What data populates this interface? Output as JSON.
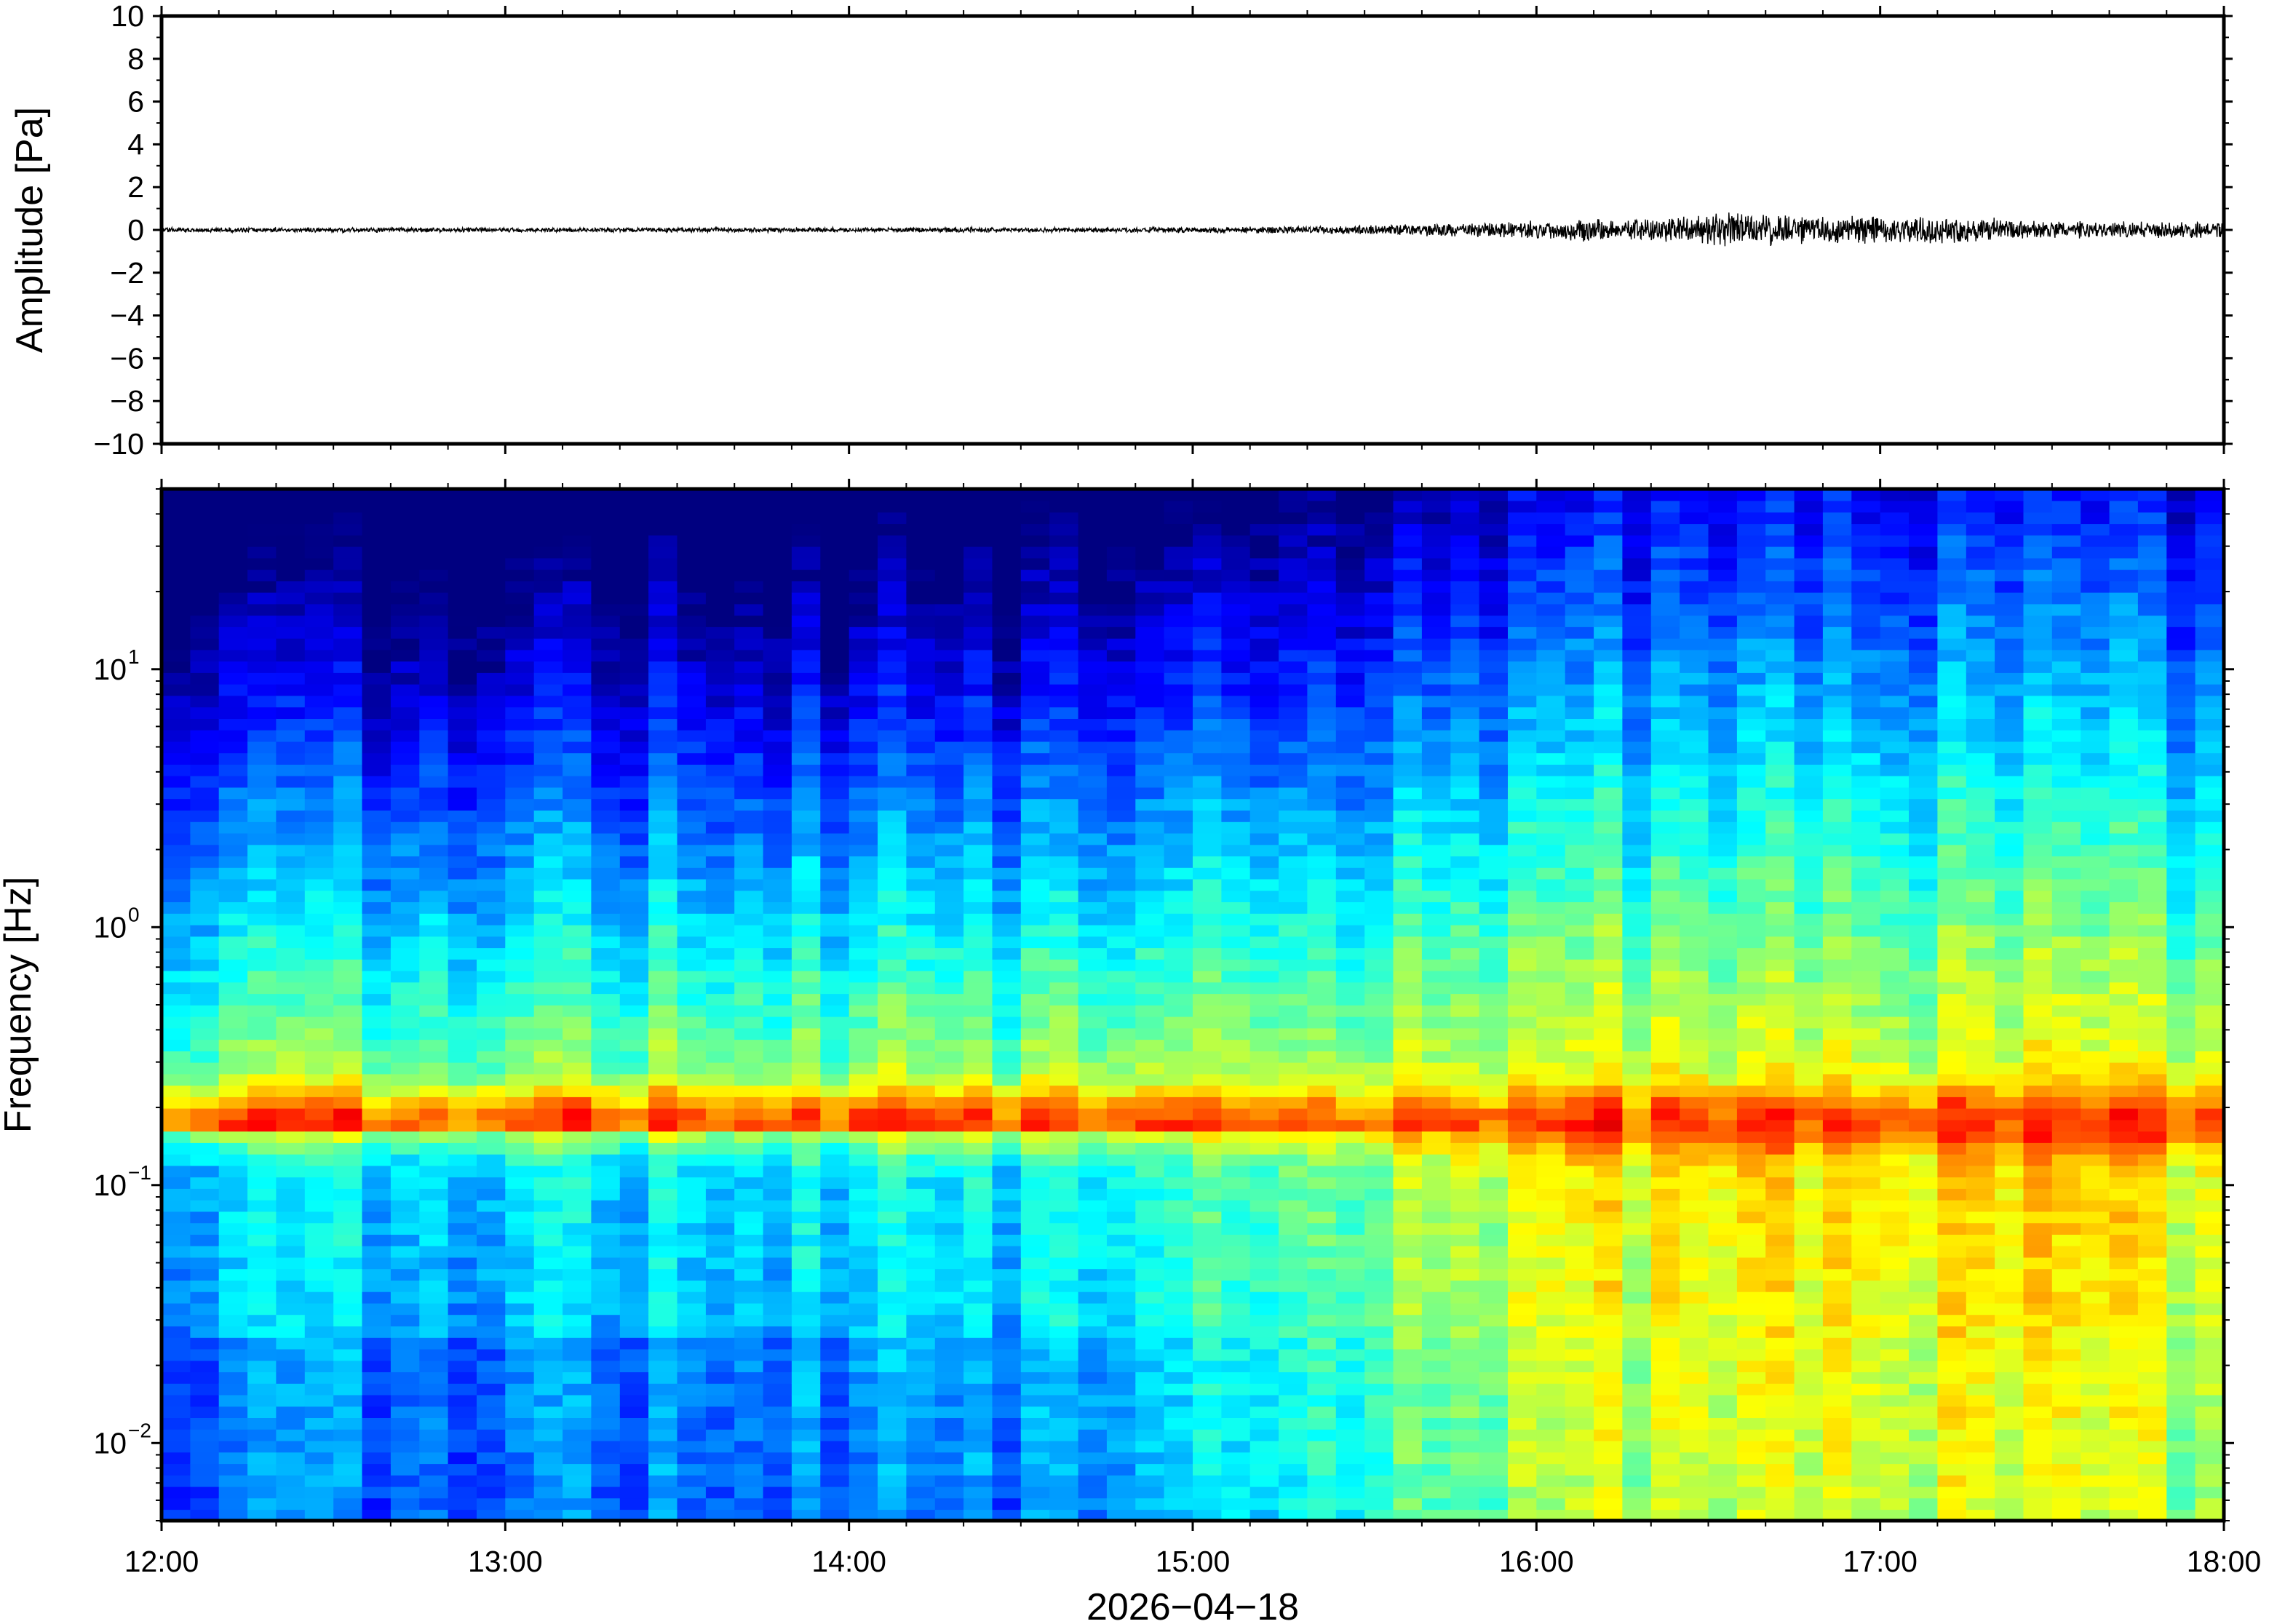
{
  "chart_data": [
    {
      "type": "line",
      "panel": "waveform",
      "ylabel": "Amplitude [Pa]",
      "ylim": [
        -10,
        10
      ],
      "yticks": [
        10,
        8,
        6,
        4,
        2,
        0,
        -2,
        -4,
        -6,
        -8,
        -10
      ],
      "ytick_labels": [
        "10",
        "8",
        "6",
        "4",
        "2",
        "0",
        "−2",
        "−4",
        "−6",
        "−8",
        "−10"
      ],
      "x_range_hours": [
        12,
        18
      ],
      "envelope": {
        "hours": [
          12.0,
          13.0,
          14.0,
          14.8,
          15.4,
          15.8,
          16.1,
          16.4,
          16.6,
          16.9,
          17.1,
          17.3,
          17.5,
          17.8,
          18.0
        ],
        "amplitude_pa": [
          0.12,
          0.12,
          0.12,
          0.14,
          0.2,
          0.35,
          0.55,
          0.65,
          0.9,
          0.7,
          0.75,
          0.6,
          0.45,
          0.4,
          0.45
        ]
      },
      "trace_color": "#000000"
    },
    {
      "type": "heatmap",
      "panel": "spectrogram",
      "ylabel": "Frequency [Hz]",
      "yscale": "log",
      "ylim": [
        0.005,
        50
      ],
      "yticks": [
        {
          "base": "10",
          "exp": "1",
          "value": 10
        },
        {
          "base": "10",
          "exp": "0",
          "value": 1
        },
        {
          "base": "10",
          "exp": "−1",
          "value": 0.1
        },
        {
          "base": "10",
          "exp": "−2",
          "value": 0.01
        }
      ],
      "colormap": "jet",
      "xlabel": "2026−04−18",
      "xticks": [
        "12:00",
        "13:00",
        "14:00",
        "15:00",
        "16:00",
        "17:00",
        "18:00"
      ],
      "x_range_hours": [
        12,
        18
      ],
      "frames_per_hour": 12,
      "activity": {
        "hours": [
          12.0,
          14.5,
          15.0,
          15.3,
          15.7,
          16.0,
          16.5,
          17.0,
          17.5,
          18.0
        ],
        "level": [
          0.0,
          0.05,
          0.2,
          0.4,
          0.6,
          0.75,
          0.85,
          0.9,
          0.85,
          0.75
        ]
      },
      "microseism_band_hz": 0.18
    }
  ]
}
